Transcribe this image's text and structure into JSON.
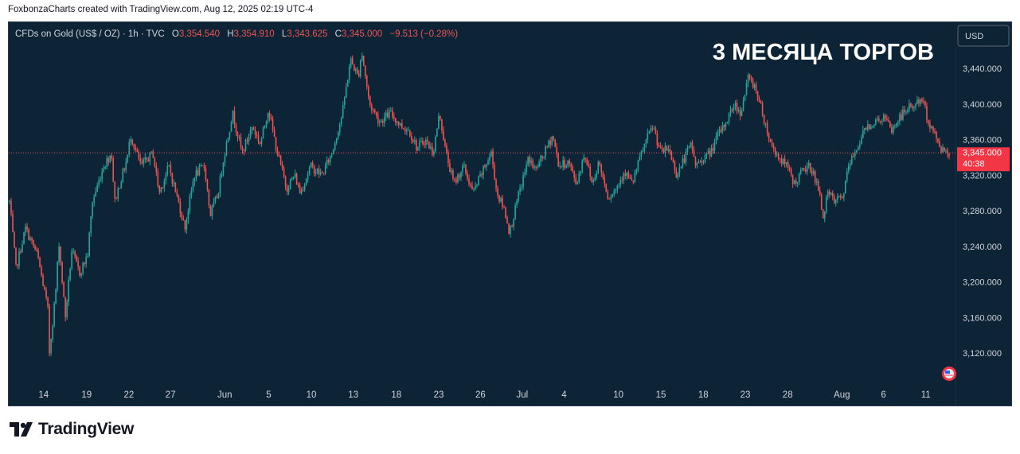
{
  "attribution": "FoxbonzaCharts created with TradingView.com, Aug 12, 2025 02:19 UTC-4",
  "header": {
    "symbol": "CFDs on Gold (US$ / OZ) · 1h · TVC",
    "open_label": "O",
    "open": "3,354.540",
    "high_label": "H",
    "high": "3,354.910",
    "low_label": "L",
    "low": "3,343.625",
    "close_label": "C",
    "close": "3,345.000",
    "change": "−9.513 (−0.28%)"
  },
  "overlay_title": "3 МЕСЯЦА ТОРГОВ",
  "currency_button": "USD",
  "price_tag": {
    "price": "3,345.000",
    "countdown": "40:38"
  },
  "footer": {
    "brand": "TradingView"
  },
  "colors": {
    "background": "#0d2436",
    "up": "#26a69a",
    "down": "#ef5350",
    "axis_text": "#d1d4dc",
    "price_tag": "#f23645"
  },
  "chart_data": {
    "type": "candlestick",
    "title": "3 МЕСЯЦА ТОРГОВ",
    "symbol": "CFDs on Gold (US$ / OZ)",
    "interval": "1h",
    "ylim": [
      3080,
      3480
    ],
    "y_ticks": [
      "3,120.000",
      "3,160.000",
      "3,200.000",
      "3,240.000",
      "3,280.000",
      "3,320.000",
      "3,360.000",
      "3,400.000",
      "3,440.000"
    ],
    "y_tick_values": [
      3120,
      3160,
      3200,
      3240,
      3280,
      3320,
      3360,
      3400,
      3440
    ],
    "x_ticks": [
      "14",
      "19",
      "22",
      "27",
      "Jun",
      "5",
      "10",
      "13",
      "18",
      "23",
      "26",
      "Jul",
      "4",
      "10",
      "15",
      "18",
      "23",
      "28",
      "Aug",
      "6",
      "11"
    ],
    "x_tick_positions": [
      0.0326,
      0.0791,
      0.1249,
      0.1699,
      0.2287,
      0.2762,
      0.3224,
      0.3678,
      0.4145,
      0.4604,
      0.5055,
      0.5507,
      0.5961,
      0.6549,
      0.7009,
      0.7468,
      0.7923,
      0.8381,
      0.8968,
      0.9419,
      0.9877
    ],
    "current_price": 3345.0,
    "price_anchors": [
      [
        0.0,
        3290
      ],
      [
        0.008,
        3215
      ],
      [
        0.02,
        3260
      ],
      [
        0.035,
        3230
      ],
      [
        0.048,
        3170
      ],
      [
        0.05,
        3120
      ],
      [
        0.058,
        3190
      ],
      [
        0.062,
        3245
      ],
      [
        0.07,
        3160
      ],
      [
        0.078,
        3235
      ],
      [
        0.088,
        3210
      ],
      [
        0.098,
        3230
      ],
      [
        0.104,
        3290
      ],
      [
        0.118,
        3330
      ],
      [
        0.128,
        3345
      ],
      [
        0.132,
        3290
      ],
      [
        0.148,
        3340
      ],
      [
        0.152,
        3365
      ],
      [
        0.165,
        3330
      ],
      [
        0.18,
        3345
      ],
      [
        0.188,
        3300
      ],
      [
        0.2,
        3330
      ],
      [
        0.215,
        3280
      ],
      [
        0.22,
        3260
      ],
      [
        0.232,
        3320
      ],
      [
        0.245,
        3330
      ],
      [
        0.252,
        3275
      ],
      [
        0.262,
        3300
      ],
      [
        0.268,
        3335
      ],
      [
        0.28,
        3390
      ],
      [
        0.292,
        3345
      ],
      [
        0.305,
        3375
      ],
      [
        0.315,
        3355
      ],
      [
        0.325,
        3395
      ],
      [
        0.335,
        3350
      ],
      [
        0.348,
        3305
      ],
      [
        0.358,
        3320
      ],
      [
        0.365,
        3300
      ],
      [
        0.378,
        3330
      ],
      [
        0.392,
        3320
      ],
      [
        0.405,
        3345
      ],
      [
        0.418,
        3390
      ],
      [
        0.428,
        3450
      ],
      [
        0.438,
        3430
      ],
      [
        0.442,
        3460
      ],
      [
        0.452,
        3400
      ],
      [
        0.465,
        3380
      ],
      [
        0.478,
        3390
      ],
      [
        0.492,
        3375
      ],
      [
        0.502,
        3370
      ],
      [
        0.512,
        3350
      ],
      [
        0.522,
        3360
      ],
      [
        0.532,
        3345
      ],
      [
        0.54,
        3390
      ],
      [
        0.548,
        3345
      ],
      [
        0.558,
        3310
      ],
      [
        0.57,
        3330
      ],
      [
        0.582,
        3300
      ],
      [
        0.592,
        3320
      ],
      [
        0.605,
        3345
      ],
      [
        0.612,
        3300
      ],
      [
        0.622,
        3280
      ],
      [
        0.628,
        3255
      ],
      [
        0.64,
        3300
      ],
      [
        0.652,
        3340
      ],
      [
        0.66,
        3325
      ],
      [
        0.672,
        3345
      ],
      [
        0.682,
        3365
      ],
      [
        0.69,
        3330
      ],
      [
        0.702,
        3335
      ],
      [
        0.712,
        3310
      ],
      [
        0.722,
        3345
      ],
      [
        0.732,
        3310
      ],
      [
        0.74,
        3335
      ],
      [
        0.752,
        3295
      ],
      [
        0.762,
        3305
      ],
      [
        0.772,
        3325
      ],
      [
        0.782,
        3310
      ],
      [
        0.792,
        3340
      ],
      [
        0.8,
        3360
      ],
      [
        0.808,
        3375
      ],
      [
        0.818,
        3345
      ],
      [
        0.828,
        3350
      ],
      [
        0.838,
        3320
      ],
      [
        0.848,
        3340
      ],
      [
        0.856,
        3355
      ],
      [
        0.862,
        3330
      ],
      [
        0.872,
        3340
      ],
      [
        0.88,
        3345
      ],
      [
        0.89,
        3365
      ],
      [
        0.9,
        3380
      ],
      [
        0.91,
        3400
      ],
      [
        0.918,
        3390
      ],
      [
        0.928,
        3430
      ],
      [
        0.936,
        3420
      ],
      [
        0.944,
        3395
      ],
      [
        0.956,
        3355
      ],
      [
        0.966,
        3340
      ],
      [
        0.976,
        3330
      ],
      [
        0.986,
        3310
      ],
      [
        0.996,
        3325
      ],
      [
        1.006,
        3330
      ],
      [
        1.014,
        3310
      ],
      [
        1.022,
        3275
      ],
      [
        1.028,
        3300
      ],
      [
        1.036,
        3290
      ],
      [
        1.046,
        3295
      ],
      [
        1.054,
        3330
      ],
      [
        1.066,
        3355
      ],
      [
        1.076,
        3375
      ],
      [
        1.088,
        3380
      ],
      [
        1.098,
        3385
      ],
      [
        1.108,
        3370
      ],
      [
        1.118,
        3385
      ],
      [
        1.128,
        3395
      ],
      [
        1.138,
        3400
      ],
      [
        1.146,
        3405
      ],
      [
        1.154,
        3380
      ],
      [
        1.162,
        3365
      ],
      [
        1.17,
        3350
      ],
      [
        1.18,
        3345
      ]
    ]
  }
}
